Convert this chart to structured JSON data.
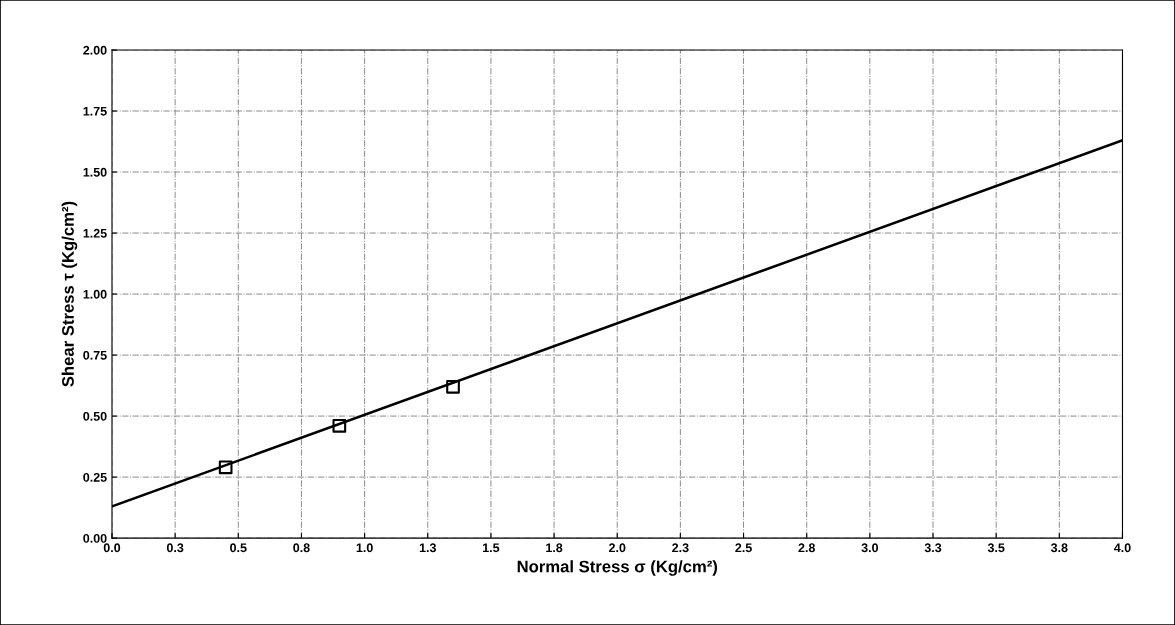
{
  "chart_data": {
    "type": "scatter",
    "xlabel": "Normal Stress σ (Kg/cm²)",
    "ylabel": "Shear Stress τ (Kg/cm²)",
    "xlim": [
      0,
      4
    ],
    "ylim": [
      0,
      2
    ],
    "xticks": [
      {
        "value": 0,
        "label": "0.0"
      },
      {
        "value": 0.25,
        "label": "0.3"
      },
      {
        "value": 0.5,
        "label": "0.5"
      },
      {
        "value": 0.75,
        "label": "0.8"
      },
      {
        "value": 1,
        "label": "1.0"
      },
      {
        "value": 1.25,
        "label": "1.3"
      },
      {
        "value": 1.5,
        "label": "1.5"
      },
      {
        "value": 1.75,
        "label": "1.8"
      },
      {
        "value": 2,
        "label": "2.0"
      },
      {
        "value": 2.25,
        "label": "2.3"
      },
      {
        "value": 2.5,
        "label": "2.5"
      },
      {
        "value": 2.75,
        "label": "2.8"
      },
      {
        "value": 3,
        "label": "3.0"
      },
      {
        "value": 3.25,
        "label": "3.3"
      },
      {
        "value": 3.5,
        "label": "3.5"
      },
      {
        "value": 3.75,
        "label": "3.8"
      },
      {
        "value": 4,
        "label": "4.0"
      }
    ],
    "yticks": [
      {
        "value": 0,
        "label": "0.00"
      },
      {
        "value": 0.25,
        "label": "0.25"
      },
      {
        "value": 0.5,
        "label": "0.50"
      },
      {
        "value": 0.75,
        "label": "0.75"
      },
      {
        "value": 1,
        "label": "1.00"
      },
      {
        "value": 1.25,
        "label": "1.25"
      },
      {
        "value": 1.5,
        "label": "1.50"
      },
      {
        "value": 1.75,
        "label": "1.75"
      },
      {
        "value": 2,
        "label": "2.00"
      }
    ],
    "grid": true,
    "series": [
      {
        "color": "#000000",
        "marker": "square",
        "x": [
          0.45,
          0.9,
          1.35
        ],
        "values": [
          0.29,
          0.46,
          0.62
        ]
      },
      {
        "type": "line",
        "color": "#000000",
        "marker": "none",
        "line_style": "solid",
        "x": [
          0,
          4
        ],
        "values": [
          0.13,
          1.63
        ]
      }
    ]
  }
}
